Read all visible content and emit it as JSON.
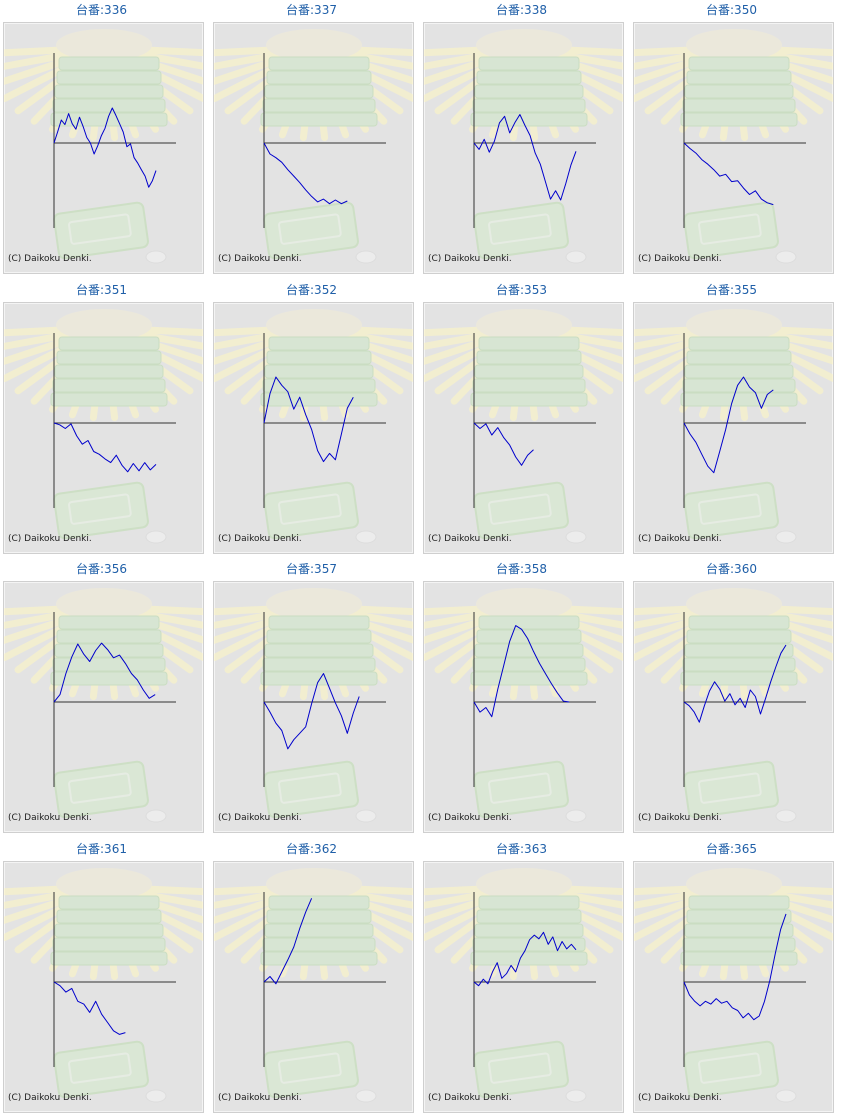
{
  "page": {
    "label_prefix": "台番:",
    "copyright": "(C) Daikoku Denki.",
    "colors": {
      "line": "#0000cc",
      "axis": "#333333",
      "title": "#1f5fa8",
      "panel_bg": "#e3e3e3"
    }
  },
  "chart_data": [
    {
      "type": "line",
      "title": "台番:336",
      "y": [
        0,
        1.2,
        2.5,
        2,
        3.2,
        2.1,
        1.5,
        2.8,
        1.8,
        0.6,
        0,
        -1.2,
        -0.3,
        0.8,
        1.6,
        2.9,
        3.8,
        3,
        2.1,
        1.2,
        -0.4,
        -0.1,
        -1.6,
        -2.2,
        -2.9,
        -3.6,
        -4.8,
        -4.1,
        -3
      ]
    },
    {
      "type": "line",
      "title": "台番:337",
      "y": [
        0,
        -1.2,
        -1.6,
        -2.1,
        -2.9,
        -3.6,
        -4.3,
        -5.1,
        -5.8,
        -6.4,
        -6.1,
        -6.6,
        -6.2,
        -6.6,
        -6.3
      ]
    },
    {
      "type": "line",
      "title": "台番:338",
      "y": [
        0,
        -0.7,
        0.4,
        -1,
        0.2,
        2.2,
        2.9,
        1.1,
        2.2,
        3.1,
        1.9,
        0.8,
        -1.1,
        -2.3,
        -4.2,
        -6.1,
        -5.2,
        -6.2,
        -4.4,
        -2.4,
        -0.9
      ]
    },
    {
      "type": "line",
      "title": "台番:350",
      "y": [
        0,
        -0.6,
        -1.1,
        -1.8,
        -2.3,
        -2.9,
        -3.6,
        -3.4,
        -4.2,
        -4.1,
        -4.9,
        -5.6,
        -5.2,
        -6.1,
        -6.5,
        -6.7
      ]
    },
    {
      "type": "line",
      "title": "台番:351",
      "y": [
        0,
        -0.2,
        -0.6,
        -0.1,
        -1.4,
        -2.3,
        -1.9,
        -3.1,
        -3.4,
        -3.9,
        -4.3,
        -3.5,
        -4.6,
        -5.3,
        -4.4,
        -5.2,
        -4.3,
        -5.1,
        -4.5
      ]
    },
    {
      "type": "line",
      "title": "台番:352",
      "y": [
        0,
        3.2,
        5,
        4.1,
        3.4,
        1.5,
        2.8,
        0.9,
        -0.7,
        -3,
        -4.2,
        -3.3,
        -4,
        -1.2,
        1.6,
        2.8
      ]
    },
    {
      "type": "line",
      "title": "台番:353",
      "y": [
        0,
        -0.6,
        -0.1,
        -1.3,
        -0.5,
        -1.6,
        -2.4,
        -3.7,
        -4.6,
        -3.5,
        -2.9
      ]
    },
    {
      "type": "line",
      "title": "台番:355",
      "y": [
        0,
        -1.2,
        -2.1,
        -3.4,
        -4.7,
        -5.4,
        -3.1,
        -0.7,
        2.1,
        4.1,
        5,
        3.9,
        3.3,
        1.6,
        3.1,
        3.6
      ]
    },
    {
      "type": "line",
      "title": "台番:356",
      "y": [
        0,
        0.8,
        3.1,
        4.9,
        6.3,
        5.2,
        4.4,
        5.6,
        6.4,
        5.7,
        4.8,
        5.1,
        4.2,
        3.1,
        2.4,
        1.3,
        0.4,
        0.8
      ]
    },
    {
      "type": "line",
      "title": "台番:357",
      "y": [
        0,
        -1.1,
        -2.3,
        -3.1,
        -5.1,
        -4.1,
        -3.4,
        -2.7,
        -0.2,
        2.1,
        3.1,
        1.5,
        -0.1,
        -1.5,
        -3.4,
        -1.2,
        0.6
      ]
    },
    {
      "type": "line",
      "title": "台番:358",
      "y": [
        0,
        -1.1,
        -0.6,
        -1.6,
        1.4,
        4,
        6.6,
        8.3,
        7.9,
        6.9,
        5.5,
        4.2,
        3.1,
        2,
        1,
        0.1,
        0
      ]
    },
    {
      "type": "line",
      "title": "台番:360",
      "y": [
        0,
        -0.4,
        -1.1,
        -2.2,
        -0.4,
        1.2,
        2.2,
        1.4,
        0.1,
        0.9,
        -0.3,
        0.4,
        -0.6,
        1.3,
        0.6,
        -1.3,
        0.4,
        2.2,
        3.8,
        5.3,
        6.2
      ]
    },
    {
      "type": "line",
      "title": "台番:361",
      "y": [
        0,
        -0.4,
        -1.1,
        -0.7,
        -2.1,
        -2.4,
        -3.3,
        -2.1,
        -3.5,
        -4.4,
        -5.3,
        -5.7,
        -5.5
      ]
    },
    {
      "type": "line",
      "title": "台番:362",
      "y": [
        0,
        0.6,
        -0.2,
        1.1,
        2.4,
        3.8,
        5.8,
        7.6,
        9.1
      ]
    },
    {
      "type": "line",
      "title": "台番:363",
      "y": [
        0,
        -0.4,
        0.3,
        -0.2,
        1.1,
        2.1,
        0.4,
        0.9,
        1.8,
        1.1,
        2.6,
        3.4,
        4.6,
        5.1,
        4.7,
        5.4,
        4.1,
        4.9,
        3.4,
        4.4,
        3.6,
        4.1,
        3.5
      ]
    },
    {
      "type": "line",
      "title": "台番:365",
      "y": [
        0,
        -1.4,
        -2.1,
        -2.6,
        -2.1,
        -2.4,
        -1.8,
        -2.3,
        -2.1,
        -2.8,
        -3.1,
        -3.9,
        -3.4,
        -4.1,
        -3.7,
        -2.1,
        0.2,
        3.1,
        5.7,
        7.4
      ]
    }
  ]
}
